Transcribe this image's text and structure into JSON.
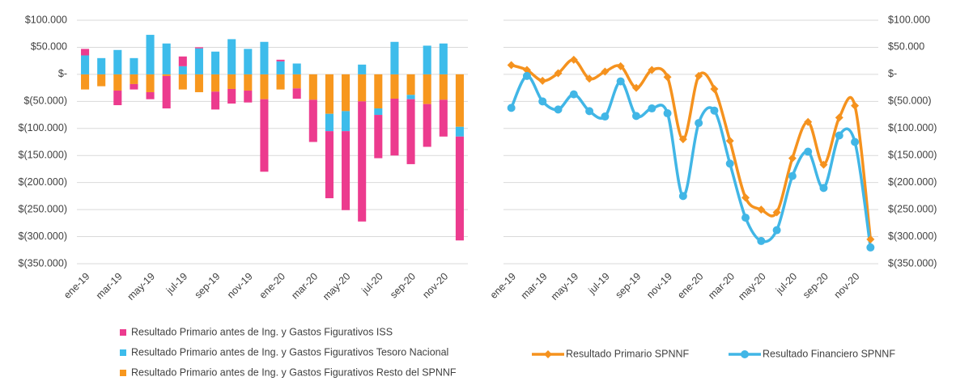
{
  "chart_data": [
    {
      "type": "bar",
      "stacked": true,
      "categories": [
        "ene-19",
        null,
        "mar-19",
        null,
        "may-19",
        null,
        "jul-19",
        null,
        "sep-19",
        null,
        "nov-19",
        null,
        "ene-20",
        null,
        "mar-20",
        null,
        "may-20",
        null,
        "jul-20",
        null,
        "sep-20",
        null,
        "nov-20",
        null
      ],
      "series": [
        {
          "name": "Resultado Primario antes de Ing. y Gastos Figurativos ISS",
          "color": "#ec3b8e",
          "values": [
            12000,
            0,
            -27000,
            -10000,
            -13000,
            -60000,
            18000,
            2000,
            -33000,
            -27000,
            -22000,
            -134000,
            3000,
            -19000,
            -78000,
            -124000,
            -146000,
            -222000,
            -80000,
            -105000,
            -120000,
            -79000,
            -68000,
            -192000
          ]
        },
        {
          "name": "Resultado Primario antes de Ing. y Gastos Figurativos Tesoro Nacional",
          "color": "#3dbceb",
          "values": [
            35000,
            30000,
            45000,
            30000,
            73000,
            57000,
            15000,
            48000,
            42000,
            65000,
            47000,
            60000,
            24000,
            20000,
            0,
            -32000,
            -37000,
            18000,
            -12000,
            60000,
            -8000,
            53000,
            57000,
            -18000
          ]
        },
        {
          "name": "Resultado Primario antes de Ing. y Gastos Figurativos Resto del SPNNF",
          "color": "#f7971e",
          "values": [
            -28000,
            -22000,
            -30000,
            -18000,
            -33000,
            -3000,
            -28000,
            -33000,
            -32000,
            -27000,
            -30000,
            -46000,
            -28000,
            -26000,
            -47000,
            -73000,
            -68000,
            -50000,
            -63000,
            -45000,
            -38000,
            -55000,
            -47000,
            -97000
          ]
        }
      ],
      "ylim": [
        -350000,
        100000
      ],
      "yticks": [
        {
          "value": 100000,
          "label": "$100.000"
        },
        {
          "value": 50000,
          "label": "$50.000"
        },
        {
          "value": 0,
          "label": "$-"
        },
        {
          "value": -50000,
          "label": "$(50.000)"
        },
        {
          "value": -100000,
          "label": "$(100.000)"
        },
        {
          "value": -150000,
          "label": "$(150.000)"
        },
        {
          "value": -200000,
          "label": "$(200.000)"
        },
        {
          "value": -250000,
          "label": "$(250.000)"
        },
        {
          "value": -300000,
          "label": "$(300.000)"
        },
        {
          "value": -350000,
          "label": "$(350.000)"
        }
      ],
      "grid": true,
      "legend": "bottom-left"
    },
    {
      "type": "line",
      "smooth": true,
      "categories": [
        "ene-19",
        null,
        "mar-19",
        null,
        "may-19",
        null,
        "jul-19",
        null,
        "sep-19",
        null,
        "nov-19",
        null,
        "ene-20",
        null,
        "mar-20",
        null,
        "may-20",
        null,
        "jul-20",
        null,
        "sep-20",
        null,
        "nov-20",
        null
      ],
      "series": [
        {
          "name": "Resultado Primario SPNNF",
          "color": "#f5921e",
          "marker": "diamond",
          "values": [
            17000,
            8000,
            -12000,
            2000,
            27000,
            -8000,
            5000,
            15000,
            -25000,
            8000,
            -5000,
            -120000,
            -3000,
            -27000,
            -123000,
            -228000,
            -250000,
            -255000,
            -155000,
            -88000,
            -167000,
            -80000,
            -58000,
            -305000
          ]
        },
        {
          "name": "Resultado Financiero SPNNF",
          "color": "#41b6e6",
          "marker": "circle",
          "values": [
            -62000,
            -3000,
            -50000,
            -65000,
            -37000,
            -68000,
            -78000,
            -13000,
            -77000,
            -63000,
            -72000,
            -225000,
            -90000,
            -67000,
            -165000,
            -265000,
            -308000,
            -288000,
            -188000,
            -143000,
            -210000,
            -113000,
            -125000,
            -320000
          ]
        }
      ],
      "ylim": [
        -350000,
        100000
      ],
      "yticks": [
        {
          "value": 100000,
          "label": "$100.000"
        },
        {
          "value": 50000,
          "label": "$50.000"
        },
        {
          "value": 0,
          "label": "$-"
        },
        {
          "value": -50000,
          "label": "$(50.000)"
        },
        {
          "value": -100000,
          "label": "$(100.000)"
        },
        {
          "value": -150000,
          "label": "$(150.000)"
        },
        {
          "value": -200000,
          "label": "$(200.000)"
        },
        {
          "value": -250000,
          "label": "$(250.000)"
        },
        {
          "value": -300000,
          "label": "$(300.000)"
        },
        {
          "value": -350000,
          "label": "$(350.000)"
        }
      ],
      "grid": true,
      "yaxis": "right",
      "legend": "bottom-right"
    }
  ]
}
